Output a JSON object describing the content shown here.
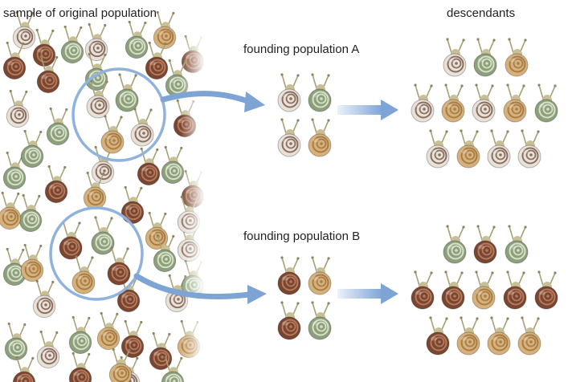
{
  "labels": {
    "original": "sample of original population",
    "founding_a": "founding population A",
    "founding_b": "founding population B",
    "descendants": "descendants"
  },
  "colors": {
    "white_shell": "#e7e1d8",
    "white_stripe": "#8b6e5f",
    "green_shell": "#8ca07c",
    "green_stripe": "#d9e0c9",
    "brown_shell": "#7a4632",
    "brown_stripe": "#b67a5c",
    "tan_shell": "#d8b17a",
    "tan_stripe": "#a57d49",
    "snail_body": "#c7bf95",
    "circle": "#8fb3dc",
    "arrow": "#7ea4d6"
  },
  "snails": {
    "original_sample": [
      "white",
      "brown",
      "green",
      "white",
      "green",
      "tan",
      "brown",
      "brown",
      "white",
      "green",
      "brown",
      "green",
      "brown",
      "white",
      "green",
      "brown",
      "green",
      "tan",
      "brown",
      "tan",
      "white",
      "green",
      "white",
      "green",
      "brown",
      "white",
      "green",
      "white",
      "green",
      "tan",
      "brown",
      "brown",
      "tan",
      "brown",
      "white",
      "green",
      "green",
      "tan",
      "brown",
      "green",
      "brown",
      "green",
      "white",
      "tan",
      "brown",
      "brown",
      "tan",
      "green"
    ],
    "circled_a": [
      "white",
      "green",
      "tan",
      "white"
    ],
    "circled_b": [
      "brown",
      "green",
      "tan",
      "brown"
    ],
    "founding_a": [
      "white",
      "green",
      "white",
      "tan"
    ],
    "founding_b": [
      "brown",
      "tan",
      "brown",
      "green"
    ],
    "descendants_a": [
      "white",
      "green",
      "tan",
      "white",
      "tan",
      "white",
      "tan",
      "green",
      "white",
      "tan",
      "white",
      "white"
    ],
    "descendants_b": [
      "green",
      "brown",
      "green",
      "brown",
      "brown",
      "tan",
      "brown",
      "brown",
      "brown",
      "tan",
      "tan",
      "tan"
    ]
  }
}
